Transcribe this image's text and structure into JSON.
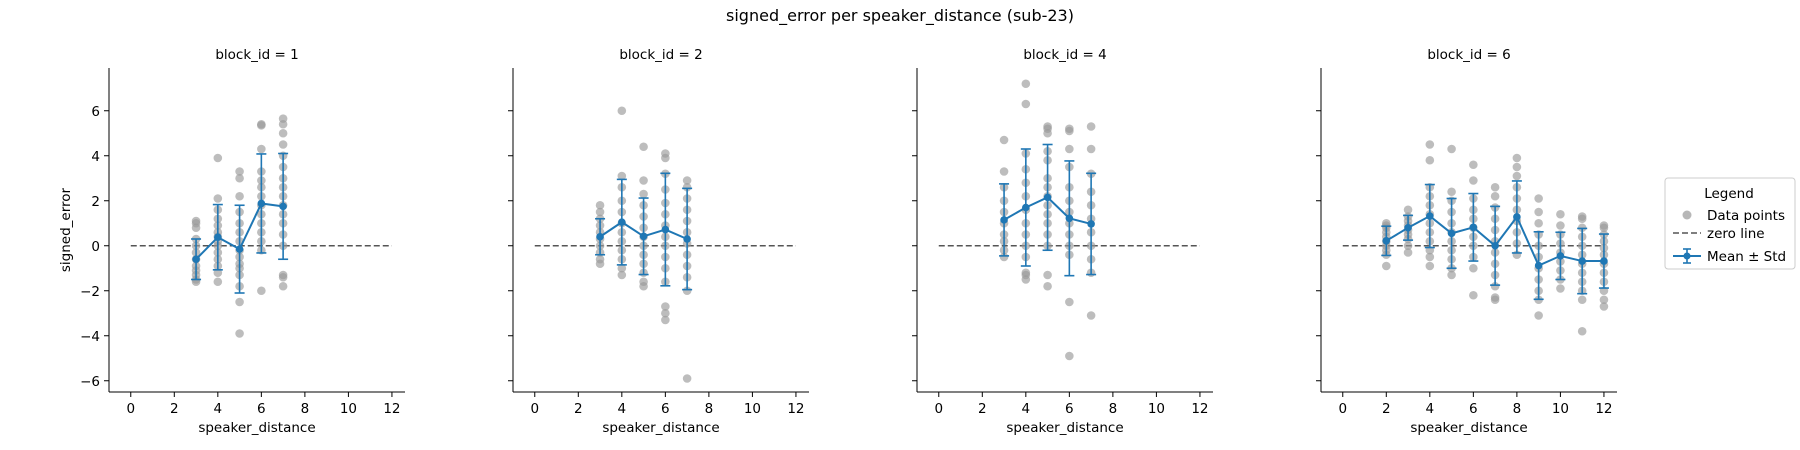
{
  "chart_data": {
    "type": "scatter",
    "title": "signed_error per speaker_distance (sub-23)",
    "xlabel": "speaker_distance",
    "ylabel": "signed_error",
    "xlim": [
      -1,
      12.6
    ],
    "ylim": [
      -6.5,
      7.9
    ],
    "xticks": [
      0,
      2,
      4,
      6,
      8,
      10,
      12
    ],
    "yticks": [
      -6,
      -4,
      -2,
      0,
      2,
      4,
      6
    ],
    "grid": false,
    "zero_line": 0,
    "legend": {
      "title": "Legend",
      "placement": "center-right",
      "entries": [
        "Data points",
        "zero line",
        "Mean ± Std"
      ]
    },
    "colors": {
      "points": "#999999",
      "mean": "#1f77b4",
      "zero": "#555555"
    },
    "panels": [
      {
        "title": "block_id = 1",
        "mean_std": [
          {
            "x": 3,
            "mean": -0.6,
            "std": 0.9
          },
          {
            "x": 4,
            "mean": 0.38,
            "std": 1.45
          },
          {
            "x": 5,
            "mean": -0.15,
            "std": 1.95
          },
          {
            "x": 6,
            "mean": 1.88,
            "std": 2.2
          },
          {
            "x": 7,
            "mean": 1.75,
            "std": 2.35
          }
        ],
        "points": [
          {
            "x": 3,
            "y": [
              1.1,
              1.0,
              0.8,
              0.3,
              0.0,
              -0.3,
              -0.6,
              -0.9,
              -1.1,
              -1.3,
              -1.5,
              -1.6
            ]
          },
          {
            "x": 4,
            "y": [
              3.9,
              2.1,
              1.6,
              1.2,
              0.9,
              0.6,
              0.4,
              0.2,
              0.0,
              -0.3,
              -0.6,
              -0.9,
              -1.2,
              -1.6
            ]
          },
          {
            "x": 5,
            "y": [
              3.3,
              3.0,
              2.2,
              1.5,
              1.0,
              0.6,
              0.2,
              -0.2,
              -0.5,
              -0.8,
              -1.0,
              -1.3,
              -1.8,
              -2.5,
              -3.9
            ]
          },
          {
            "x": 6,
            "y": [
              5.4,
              5.35,
              4.3,
              3.3,
              2.9,
              2.6,
              2.2,
              1.8,
              1.4,
              1.0,
              0.6,
              0.2,
              -0.2,
              -2.0
            ]
          },
          {
            "x": 7,
            "y": [
              5.65,
              5.4,
              5.0,
              4.5,
              4.0,
              3.5,
              3.0,
              2.6,
              2.2,
              1.8,
              1.4,
              1.0,
              0.5,
              0.0,
              -1.3,
              -1.4,
              -1.8
            ]
          }
        ]
      },
      {
        "title": "block_id = 2",
        "mean_std": [
          {
            "x": 3,
            "mean": 0.4,
            "std": 0.8
          },
          {
            "x": 4,
            "mean": 1.05,
            "std": 1.9
          },
          {
            "x": 5,
            "mean": 0.42,
            "std": 1.7
          },
          {
            "x": 6,
            "mean": 0.72,
            "std": 2.5
          },
          {
            "x": 7,
            "mean": 0.3,
            "std": 2.25
          }
        ],
        "points": [
          {
            "x": 3,
            "y": [
              1.8,
              1.5,
              1.2,
              0.9,
              0.6,
              0.3,
              0.0,
              -0.3,
              -0.6,
              -0.8
            ]
          },
          {
            "x": 4,
            "y": [
              6.0,
              3.1,
              2.6,
              2.0,
              1.5,
              1.0,
              0.6,
              0.2,
              -0.2,
              -0.6,
              -1.0,
              -1.3
            ]
          },
          {
            "x": 5,
            "y": [
              4.4,
              2.9,
              2.3,
              1.8,
              1.3,
              0.8,
              0.4,
              0.0,
              -0.4,
              -0.8,
              -1.2,
              -1.6,
              -1.8
            ]
          },
          {
            "x": 6,
            "y": [
              4.1,
              3.9,
              3.2,
              2.5,
              1.9,
              1.4,
              0.9,
              0.4,
              0.0,
              -0.5,
              -1.0,
              -1.6,
              -2.7,
              -3.0,
              -3.3
            ]
          },
          {
            "x": 7,
            "y": [
              2.9,
              2.6,
              2.1,
              1.6,
              1.1,
              0.6,
              0.1,
              -0.4,
              -0.9,
              -1.4,
              -2.0,
              -5.9
            ]
          }
        ]
      },
      {
        "title": "block_id = 4",
        "mean_std": [
          {
            "x": 3,
            "mean": 1.15,
            "std": 1.6
          },
          {
            "x": 4,
            "mean": 1.7,
            "std": 2.6
          },
          {
            "x": 5,
            "mean": 2.15,
            "std": 2.35
          },
          {
            "x": 6,
            "mean": 1.22,
            "std": 2.55
          },
          {
            "x": 7,
            "mean": 0.97,
            "std": 2.25
          }
        ],
        "points": [
          {
            "x": 3,
            "y": [
              4.7,
              3.3,
              2.6,
              2.0,
              1.5,
              1.0,
              0.5,
              0.2,
              -0.2,
              -0.5
            ]
          },
          {
            "x": 4,
            "y": [
              7.2,
              6.3,
              4.1,
              3.4,
              2.8,
              2.2,
              1.6,
              1.0,
              0.5,
              0.0,
              -0.5,
              -1.2,
              -1.3,
              -1.5
            ]
          },
          {
            "x": 5,
            "y": [
              5.3,
              5.2,
              5.0,
              4.2,
              3.8,
              3.0,
              2.6,
              2.2,
              1.8,
              1.4,
              1.0,
              0.5,
              0.0,
              -1.3,
              -1.8
            ]
          },
          {
            "x": 6,
            "y": [
              5.2,
              5.1,
              4.3,
              3.5,
              2.6,
              2.0,
              1.5,
              1.0,
              0.5,
              0.0,
              -0.4,
              -2.5,
              -4.9
            ]
          },
          {
            "x": 7,
            "y": [
              5.3,
              4.3,
              3.2,
              2.4,
              1.8,
              1.2,
              0.6,
              0.0,
              -0.6,
              -1.2,
              -3.1
            ]
          }
        ]
      },
      {
        "title": "block_id = 6",
        "mean_std": [
          {
            "x": 2,
            "mean": 0.22,
            "std": 0.65
          },
          {
            "x": 3,
            "mean": 0.8,
            "std": 0.55
          },
          {
            "x": 4,
            "mean": 1.32,
            "std": 1.4
          },
          {
            "x": 5,
            "mean": 0.55,
            "std": 1.55
          },
          {
            "x": 6,
            "mean": 0.82,
            "std": 1.5
          },
          {
            "x": 7,
            "mean": 0.0,
            "std": 1.75
          },
          {
            "x": 8,
            "mean": 1.28,
            "std": 1.6
          },
          {
            "x": 9,
            "mean": -0.88,
            "std": 1.5
          },
          {
            "x": 10,
            "mean": -0.45,
            "std": 1.05
          },
          {
            "x": 11,
            "mean": -0.68,
            "std": 1.45
          },
          {
            "x": 12,
            "mean": -0.68,
            "std": 1.2
          }
        ],
        "points": [
          {
            "x": 2,
            "y": [
              1.0,
              0.9,
              0.8,
              0.6,
              0.4,
              0.2,
              0.0,
              -0.2,
              -0.4,
              -0.9
            ]
          },
          {
            "x": 3,
            "y": [
              1.6,
              1.3,
              1.1,
              0.9,
              0.7,
              0.5,
              0.3,
              0.0,
              -0.3
            ]
          },
          {
            "x": 4,
            "y": [
              4.5,
              3.8,
              2.6,
              2.2,
              1.8,
              1.4,
              1.0,
              0.6,
              0.2,
              -0.2,
              -0.5,
              -0.9
            ]
          },
          {
            "x": 5,
            "y": [
              4.3,
              2.4,
              2.0,
              1.5,
              1.0,
              0.6,
              0.2,
              -0.2,
              -0.6,
              -1.0,
              -1.3
            ]
          },
          {
            "x": 6,
            "y": [
              3.6,
              2.9,
              2.1,
              1.6,
              1.2,
              0.8,
              0.4,
              0.0,
              -0.5,
              -1.0,
              -2.2
            ]
          },
          {
            "x": 7,
            "y": [
              2.6,
              2.2,
              1.7,
              1.2,
              0.7,
              0.2,
              -0.3,
              -0.8,
              -1.3,
              -1.8,
              -2.3,
              -2.4
            ]
          },
          {
            "x": 8,
            "y": [
              3.9,
              3.5,
              3.1,
              2.6,
              2.1,
              1.6,
              1.1,
              0.6,
              0.1,
              -0.4
            ]
          },
          {
            "x": 9,
            "y": [
              2.1,
              1.5,
              1.0,
              0.5,
              0.0,
              -0.5,
              -1.0,
              -1.5,
              -2.0,
              -2.4,
              -3.1
            ]
          },
          {
            "x": 10,
            "y": [
              1.4,
              0.9,
              0.5,
              0.1,
              -0.3,
              -0.7,
              -1.1,
              -1.5,
              -1.9
            ]
          },
          {
            "x": 11,
            "y": [
              1.3,
              1.2,
              0.8,
              0.4,
              0.0,
              -0.4,
              -0.8,
              -1.2,
              -1.6,
              -2.0,
              -2.4,
              -3.8
            ]
          },
          {
            "x": 12,
            "y": [
              0.9,
              0.8,
              0.5,
              0.2,
              -0.1,
              -0.4,
              -0.8,
              -1.2,
              -1.6,
              -2.0,
              -2.4,
              -2.7
            ]
          }
        ]
      }
    ]
  }
}
